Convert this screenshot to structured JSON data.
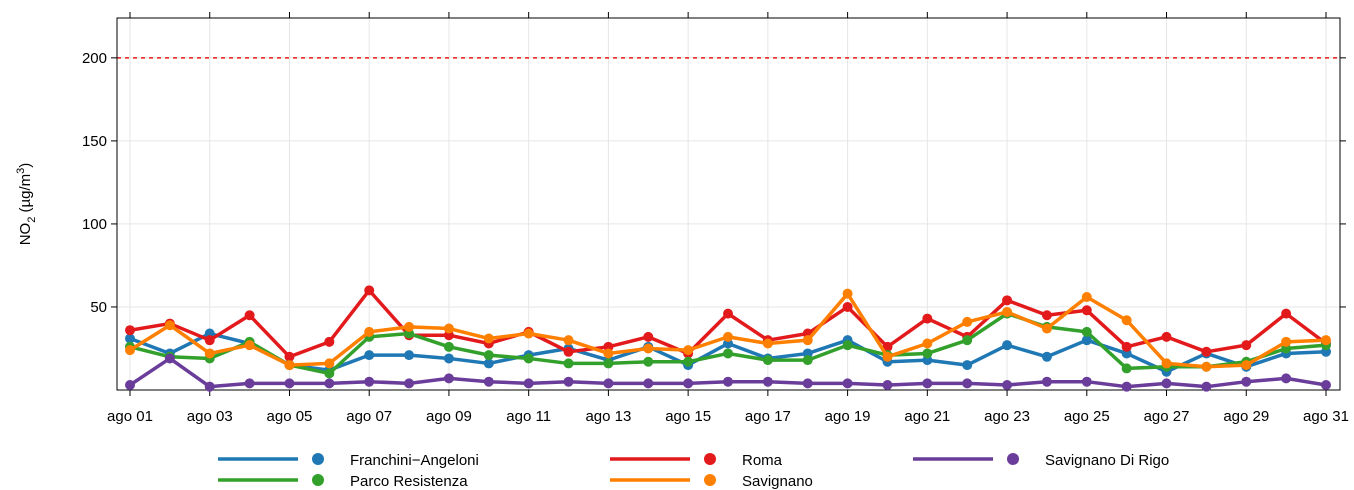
{
  "chart_data": {
    "type": "line",
    "y_label": [
      "NO",
      "2",
      " (µg/m",
      "3",
      ")"
    ],
    "categories": [
      "ago 01",
      null,
      "ago 03",
      null,
      "ago 05",
      null,
      "ago 07",
      null,
      "ago 09",
      null,
      "ago 11",
      null,
      "ago 13",
      null,
      "ago 15",
      null,
      "ago 17",
      null,
      "ago 19",
      null,
      "ago 21",
      null,
      "ago 23",
      null,
      "ago 25",
      null,
      "ago 27",
      null,
      "ago 29",
      null,
      "ago 31"
    ],
    "ylim": [
      0,
      224
    ],
    "yticks": [
      50,
      100,
      150,
      200
    ],
    "grid": true,
    "hline": {
      "value": 200,
      "color": "#e31a1c"
    },
    "series": [
      {
        "name": "Franchini−Angeloni",
        "color": "#1f78b4",
        "values": [
          31,
          22,
          34,
          28,
          15,
          12,
          21,
          21,
          19,
          16,
          21,
          25,
          18,
          26,
          15,
          28,
          19,
          22,
          30,
          17,
          18,
          15,
          27,
          20,
          30,
          22,
          11,
          22,
          14,
          22,
          23
        ]
      },
      {
        "name": "Parco Resistenza",
        "color": "#33a02c",
        "values": [
          26,
          20,
          19,
          29,
          15,
          10,
          32,
          34,
          26,
          21,
          19,
          16,
          16,
          17,
          17,
          22,
          18,
          18,
          27,
          21,
          22,
          30,
          46,
          38,
          35,
          13,
          14,
          14,
          17,
          25,
          27
        ]
      },
      {
        "name": "Roma",
        "color": "#e31a1c",
        "values": [
          36,
          40,
          30,
          45,
          20,
          29,
          60,
          33,
          33,
          28,
          35,
          23,
          26,
          32,
          22,
          46,
          30,
          34,
          50,
          26,
          43,
          32,
          54,
          45,
          48,
          26,
          32,
          23,
          27,
          46,
          28
        ]
      },
      {
        "name": "Savignano",
        "color": "#ff7f00",
        "values": [
          24,
          39,
          22,
          27,
          15,
          16,
          35,
          38,
          37,
          31,
          34,
          30,
          22,
          25,
          24,
          32,
          28,
          30,
          58,
          20,
          28,
          41,
          47,
          37,
          56,
          42,
          16,
          14,
          15,
          29,
          30
        ]
      },
      {
        "name": "Savignano Di Rigo",
        "color": "#6a3d9a",
        "values": [
          3,
          19,
          2,
          4,
          4,
          4,
          5,
          4,
          7,
          5,
          4,
          5,
          4,
          4,
          4,
          5,
          5,
          4,
          4,
          3,
          4,
          4,
          3,
          5,
          5,
          2,
          4,
          2,
          5,
          7,
          3
        ]
      }
    ]
  }
}
